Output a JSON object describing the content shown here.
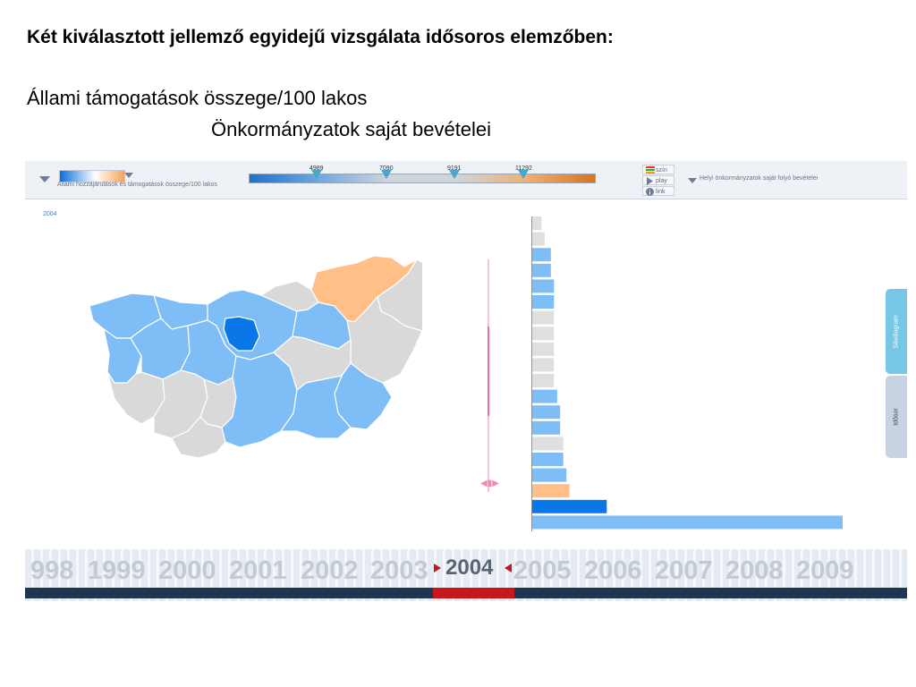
{
  "slide": {
    "title": "Két kiválasztott jellemző egyidejű vizsgálata idősoros elemzőben:",
    "subtitle1": "Állami támogatások összege/100 lakos",
    "subtitle2": "Önkormányzatok saját bevételei"
  },
  "toolbar": {
    "left_indicator_label": "Állami hozzájárulások és támogatások összege/100 lakos",
    "right_indicator_label": "Helyi önkormányzatok saját folyó bevételei",
    "thresholds": [
      "4989",
      "7090",
      "9191",
      "11292"
    ],
    "buttons": {
      "color": "szín",
      "play": "play",
      "link": "link"
    },
    "colors": {
      "low": "#0a6fd8",
      "mid": "#d9dde2",
      "high": "#f5a35a"
    }
  },
  "map": {
    "year_label": "2004"
  },
  "bar_chart": {
    "values": [
      3,
      4,
      6,
      6,
      7,
      7,
      7,
      7,
      7,
      7,
      7,
      8,
      9,
      9,
      10,
      10,
      11,
      12,
      24,
      100
    ],
    "colors": [
      "gray",
      "gray",
      "lightblue",
      "lightblue",
      "lightblue",
      "lightblue",
      "gray",
      "gray",
      "gray",
      "gray",
      "gray",
      "lightblue",
      "lightblue",
      "lightblue",
      "gray",
      "lightblue",
      "lightblue",
      "orange",
      "blue",
      "lightblue"
    ]
  },
  "side_tabs": {
    "bar": "Sávdiagram",
    "time": "Idősor"
  },
  "timeline": {
    "years_before": [
      "998",
      "1999",
      "2000",
      "2001",
      "2002",
      "2003"
    ],
    "current_year": "2004",
    "years_after": [
      "2005",
      "2006",
      "2007",
      "2008",
      "2009"
    ]
  }
}
